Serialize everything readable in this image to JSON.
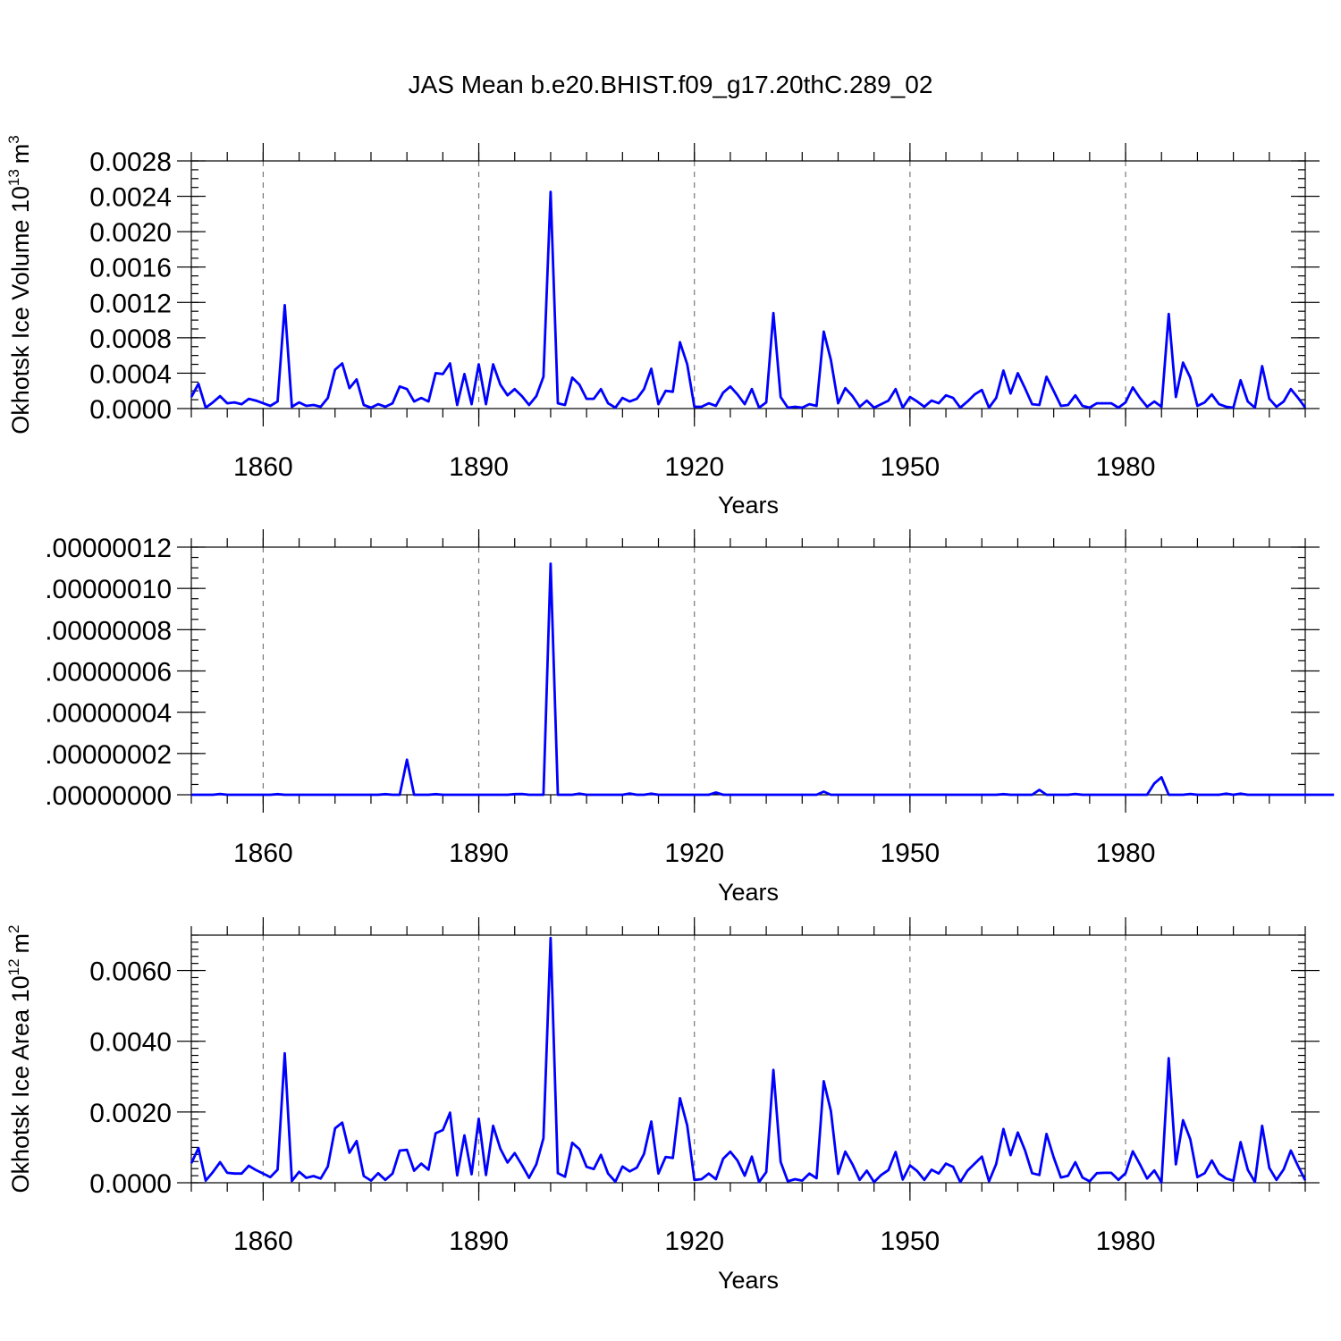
{
  "title": "JAS Mean b.e20.BHIST.f09_g17.20thC.289_02",
  "colors": {
    "series": "#0000ff",
    "grid": "#777777",
    "axis": "#000000"
  },
  "chart_data": [
    {
      "type": "line",
      "ylabel": "Okhotsk Ice Volume 10",
      "ylabel_exponent": "13",
      "ylabel_unit": "m",
      "ylabel_unit_exponent": "3",
      "xlabel": "Years",
      "xlim": [
        1850,
        2005
      ],
      "ylim": [
        0,
        0.0028
      ],
      "xticks": [
        "1860",
        "1890",
        "1920",
        "1950",
        "1980"
      ],
      "yticks": [
        "0.0000",
        "0.0004",
        "0.0008",
        "0.0012",
        "0.0016",
        "0.0020",
        "0.0024",
        "0.0028"
      ],
      "grid": "vertical dashed at major x ticks",
      "x_start": 1850,
      "values": [
        0.00013,
        0.00028,
        1e-05,
        7e-05,
        0.00014,
        6e-05,
        7e-05,
        5e-05,
        0.00011,
        9e-05,
        6e-05,
        3e-05,
        8e-05,
        0.00117,
        2e-05,
        7e-05,
        3e-05,
        4e-05,
        2e-05,
        0.00012,
        0.00044,
        0.00051,
        0.00023,
        0.00033,
        4e-05,
        1e-05,
        5e-05,
        2e-05,
        6e-05,
        0.00025,
        0.00022,
        8e-05,
        0.00012,
        8e-05,
        0.0004,
        0.00039,
        0.00051,
        4e-05,
        0.00039,
        5e-05,
        0.0005,
        5e-05,
        0.0005,
        0.00027,
        0.00015,
        0.00022,
        0.00014,
        4e-05,
        0.00014,
        0.00036,
        0.00245,
        6e-05,
        4e-05,
        0.00035,
        0.00027,
        0.00011,
        0.00011,
        0.00022,
        6e-05,
        1e-05,
        0.00012,
        8e-05,
        0.00011,
        0.00022,
        0.00045,
        5e-05,
        0.0002,
        0.00019,
        0.00075,
        0.0005,
        2e-05,
        2e-05,
        6e-05,
        3e-05,
        0.00018,
        0.00025,
        0.00016,
        5e-05,
        0.00022,
        1e-05,
        7e-05,
        0.00108,
        0.00013,
        1e-05,
        2e-05,
        1e-05,
        5e-05,
        3e-05,
        0.00087,
        0.00055,
        6e-05,
        0.00023,
        0.00014,
        2e-05,
        9e-05,
        1e-05,
        5e-05,
        9e-05,
        0.00022,
        1e-05,
        0.00013,
        8e-05,
        2e-05,
        9e-05,
        6e-05,
        0.00015,
        0.00012,
        1e-05,
        8e-05,
        0.00016,
        0.00021,
        1e-05,
        0.00012,
        0.00043,
        0.00017,
        0.0004,
        0.00023,
        5e-05,
        4e-05,
        0.00036,
        0.0002,
        3e-05,
        4e-05,
        0.00015,
        3e-05,
        1e-05,
        6e-05,
        6e-05,
        6e-05,
        1e-05,
        7e-05,
        0.00024,
        0.00012,
        2e-05,
        8e-05,
        2e-05,
        0.00107,
        0.00013,
        0.00052,
        0.00035,
        3e-05,
        7e-05,
        0.00016,
        5e-05,
        2e-05,
        1e-05,
        0.00032,
        8e-05,
        1e-05,
        0.00048,
        0.00011,
        2e-05,
        8e-05,
        0.00022,
        0.00012,
        1e-05
      ]
    },
    {
      "type": "line",
      "ylabel": "",
      "xlabel": "Years",
      "xlim": [
        1850,
        2005
      ],
      "ylim": [
        0,
        1.2e-07
      ],
      "xticks": [
        "1860",
        "1890",
        "1920",
        "1950",
        "1980"
      ],
      "yticks": [
        ".00000000",
        ".00000002",
        ".00000004",
        ".00000006",
        ".00000008",
        ".00000010",
        ".00000012"
      ],
      "grid": "vertical dashed at major x ticks",
      "x_start": 1850,
      "values": [
        0,
        0,
        0,
        0,
        4e-10,
        0,
        0,
        0,
        0,
        0,
        0,
        0,
        3e-10,
        0,
        0,
        0,
        0,
        0,
        0,
        0,
        0,
        0,
        0,
        0,
        0,
        0,
        0,
        3e-10,
        0,
        0,
        1.7e-08,
        0,
        0,
        0,
        3e-10,
        0,
        0,
        0,
        0,
        0,
        0,
        0,
        0,
        0,
        0,
        3e-10,
        4e-10,
        0,
        0,
        0,
        1.12e-07,
        0,
        0,
        0,
        5e-10,
        0,
        0,
        0,
        0,
        0,
        0,
        6e-10,
        0,
        0,
        5e-10,
        0,
        0,
        0,
        0,
        0,
        0,
        0,
        0,
        1.1e-09,
        0,
        0,
        0,
        0,
        0,
        0,
        0,
        0,
        0,
        0,
        0,
        0,
        0,
        0,
        1.5e-09,
        0,
        0,
        0,
        0,
        0,
        0,
        0,
        0,
        0,
        0,
        0,
        0,
        0,
        0,
        0,
        0,
        0,
        0,
        0,
        0,
        0,
        0,
        0,
        0,
        3e-10,
        0,
        0,
        0,
        0,
        2.4e-09,
        0,
        0,
        0,
        0,
        4e-10,
        0,
        0,
        0,
        0,
        0,
        0,
        0,
        0,
        0,
        0,
        5.5e-09,
        8.5e-09,
        0,
        0,
        0,
        4e-10,
        0,
        0,
        0,
        0,
        5e-10,
        0,
        5e-10,
        0,
        0,
        0,
        0,
        0,
        0,
        0,
        0,
        0,
        0,
        0,
        0,
        0
      ]
    },
    {
      "type": "line",
      "ylabel": "Okhotsk Ice Area 10",
      "ylabel_exponent": "12",
      "ylabel_unit": "m",
      "ylabel_unit_exponent": "2",
      "xlabel": "Years",
      "xlim": [
        1850,
        2005
      ],
      "ylim": [
        0,
        0.007
      ],
      "xticks": [
        "1860",
        "1890",
        "1920",
        "1950",
        "1980"
      ],
      "yticks": [
        "0.0000",
        "0.0020",
        "0.0040",
        "0.0060"
      ],
      "grid": "vertical dashed at major x ticks",
      "x_start": 1850,
      "values": [
        0.00055,
        0.00098,
        6e-05,
        0.0003,
        0.00058,
        0.00028,
        0.00026,
        0.00026,
        0.00048,
        0.00036,
        0.00026,
        0.00016,
        0.00037,
        0.00366,
        5e-05,
        0.00031,
        0.00014,
        0.00019,
        0.00012,
        0.00046,
        0.00154,
        0.0017,
        0.00085,
        0.00118,
        0.00019,
        6e-05,
        0.00027,
        8e-05,
        0.00026,
        0.00091,
        0.00093,
        0.00034,
        0.00054,
        0.00037,
        0.0014,
        0.00149,
        0.00198,
        0.00021,
        0.00134,
        0.00024,
        0.00181,
        0.00022,
        0.00161,
        0.00096,
        0.00057,
        0.00084,
        0.0005,
        0.00014,
        0.00052,
        0.00126,
        0.00692,
        0.00027,
        0.00017,
        0.00113,
        0.00095,
        0.00045,
        0.00039,
        0.00079,
        0.00026,
        3e-05,
        0.00046,
        0.00032,
        0.00043,
        0.00082,
        0.00173,
        0.00026,
        0.00073,
        0.0007,
        0.00239,
        0.00162,
        8e-05,
        0.0001,
        0.00026,
        0.0001,
        0.00068,
        0.00088,
        0.00063,
        0.0002,
        0.00074,
        2e-05,
        0.0003,
        0.00319,
        0.00059,
        4e-05,
        0.0001,
        6e-05,
        0.00026,
        0.00013,
        0.00287,
        0.00203,
        0.00025,
        0.00088,
        0.00052,
        8e-05,
        0.00034,
        2e-05,
        0.00022,
        0.00036,
        0.00087,
        9e-05,
        0.00049,
        0.00033,
        8e-05,
        0.00037,
        0.00026,
        0.00054,
        0.00045,
        2e-05,
        0.00034,
        0.00054,
        0.00074,
        4e-05,
        0.00053,
        0.00152,
        0.00078,
        0.00142,
        0.00092,
        0.00027,
        0.00022,
        0.00138,
        0.00072,
        0.00015,
        0.0002,
        0.00058,
        0.00015,
        4e-05,
        0.00027,
        0.00028,
        0.00028,
        8e-05,
        0.00027,
        0.00089,
        0.00052,
        0.00012,
        0.00035,
        1e-05,
        0.00352,
        0.00052,
        0.00177,
        0.00123,
        0.00016,
        0.00027,
        0.00063,
        0.00026,
        0.00012,
        6e-05,
        0.00115,
        0.00037,
        2e-05,
        0.00161,
        0.00042,
        8e-05,
        0.00038,
        0.00091,
        0.00047,
        7e-05
      ]
    }
  ]
}
